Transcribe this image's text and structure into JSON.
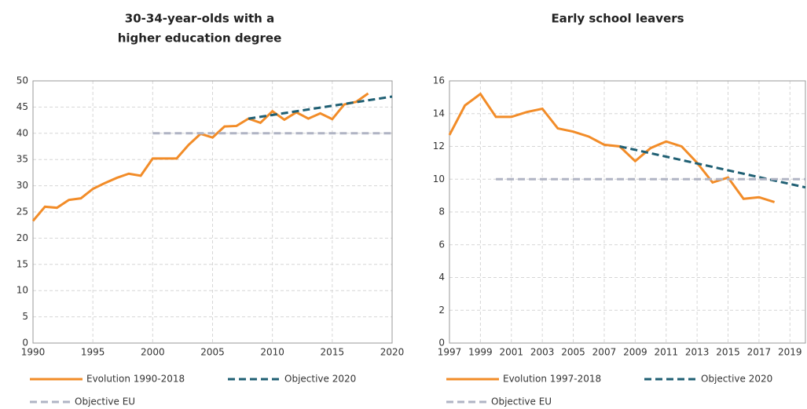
{
  "chart_data": [
    {
      "type": "line",
      "title": [
        "30-34-year-olds with a",
        "higher education degree"
      ],
      "xlim": [
        1990,
        2020
      ],
      "xticks": [
        1990,
        1995,
        2000,
        2005,
        2010,
        2015,
        2020
      ],
      "ylim": [
        0,
        50
      ],
      "yticks": [
        0,
        5,
        10,
        15,
        20,
        25,
        30,
        35,
        40,
        45,
        50
      ],
      "grid": true,
      "series": [
        {
          "name": "Evolution 1990-2018",
          "color": "#f28c28",
          "style": "solid",
          "x": [
            1990,
            1991,
            1992,
            1993,
            1994,
            1995,
            1996,
            1997,
            1998,
            1999,
            2000,
            2001,
            2002,
            2003,
            2004,
            2005,
            2006,
            2007,
            2008,
            2009,
            2010,
            2011,
            2012,
            2013,
            2014,
            2015,
            2016,
            2017,
            2018
          ],
          "values": [
            23.3,
            26.0,
            25.8,
            27.3,
            27.6,
            29.4,
            30.5,
            31.5,
            32.3,
            31.9,
            35.2,
            35.2,
            35.2,
            37.8,
            39.9,
            39.2,
            41.3,
            41.4,
            42.8,
            42.0,
            44.2,
            42.6,
            44.0,
            42.8,
            43.8,
            42.7,
            45.5,
            46.0,
            47.6
          ]
        },
        {
          "name": "Objective 2020",
          "color": "#1f5f73",
          "style": "dashed",
          "x": [
            2008,
            2020
          ],
          "values": [
            42.8,
            47.0
          ]
        },
        {
          "name": "Objective EU",
          "color": "#b0b4c4",
          "style": "dashed",
          "x": [
            2000,
            2020
          ],
          "values": [
            40,
            40
          ]
        }
      ]
    },
    {
      "type": "line",
      "title": [
        "Early school leavers"
      ],
      "xlim": [
        1997,
        2020
      ],
      "xticks": [
        1997,
        1999,
        2001,
        2003,
        2005,
        2007,
        2009,
        2011,
        2013,
        2015,
        2017,
        2019
      ],
      "ylim": [
        0,
        16
      ],
      "yticks": [
        0,
        2,
        4,
        6,
        8,
        10,
        12,
        14,
        16
      ],
      "grid": true,
      "series": [
        {
          "name": "Evolution 1997-2018",
          "color": "#f28c28",
          "style": "solid",
          "x": [
            1997,
            1998,
            1999,
            2000,
            2001,
            2002,
            2003,
            2004,
            2005,
            2006,
            2007,
            2008,
            2009,
            2010,
            2011,
            2012,
            2013,
            2014,
            2015,
            2016,
            2017,
            2018
          ],
          "values": [
            12.7,
            14.5,
            15.2,
            13.8,
            13.8,
            14.1,
            14.3,
            13.1,
            12.9,
            12.6,
            12.1,
            12.0,
            11.1,
            11.9,
            12.3,
            12.0,
            11.0,
            9.8,
            10.1,
            8.8,
            8.9,
            8.6
          ]
        },
        {
          "name": "Objective 2020",
          "color": "#1f5f73",
          "style": "dashed",
          "x": [
            2008,
            2020
          ],
          "values": [
            12.0,
            9.5
          ]
        },
        {
          "name": "Objective EU",
          "color": "#b0b4c4",
          "style": "dashed",
          "x": [
            2000,
            2020
          ],
          "values": [
            10,
            10
          ]
        }
      ]
    }
  ]
}
